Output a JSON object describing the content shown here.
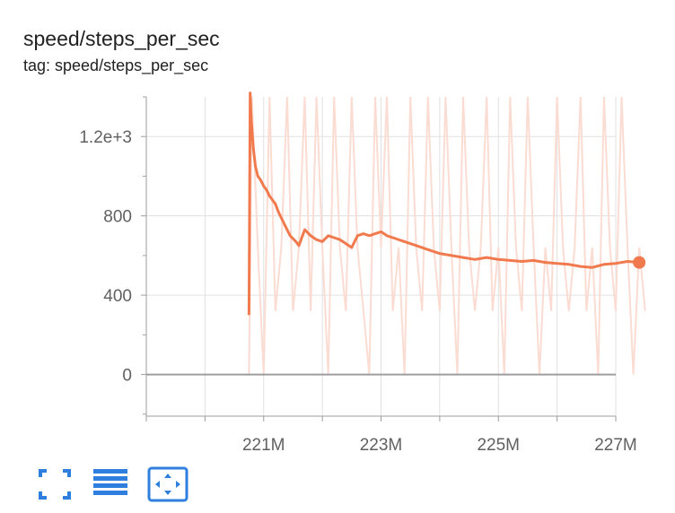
{
  "card": {
    "title": "speed/steps_per_sec",
    "tag": "tag: speed/steps_per_sec"
  },
  "colors": {
    "smoothed": "#f07a4d",
    "raw": "#fbdcd2",
    "grid": "#e0e0e0",
    "axis": "#9e9e9e",
    "zero_line": "#9e9e9e",
    "toolbar_icon": "#2f7fde"
  },
  "toolbar": {
    "icons": [
      "fullscreen-icon",
      "toggle-log-scale-icon",
      "fit-domain-icon"
    ]
  },
  "chart_data": {
    "type": "line",
    "title": "",
    "xlabel": "",
    "ylabel": "",
    "xlim": [
      219.0,
      227.0
    ],
    "ylim": [
      -210,
      1400
    ],
    "x_ticks": [
      221,
      223,
      225,
      227
    ],
    "x_tick_labels": [
      "221M",
      "223M",
      "225M",
      "227M"
    ],
    "y_ticks": [
      0,
      400,
      800,
      1200
    ],
    "y_tick_labels": [
      "0",
      "400",
      "800",
      "1.2e+3"
    ],
    "grid": true,
    "legend": "none",
    "series": [
      {
        "role": "smoothed",
        "x": [
          220.75,
          220.77,
          220.79,
          220.82,
          220.86,
          220.9,
          220.95,
          221.0,
          221.05,
          221.1,
          221.15,
          221.2,
          221.25,
          221.3,
          221.35,
          221.45,
          221.55,
          221.6,
          221.7,
          221.8,
          221.9,
          222.0,
          222.1,
          222.2,
          222.3,
          222.4,
          222.5,
          222.6,
          222.7,
          222.8,
          222.9,
          223.0,
          223.1,
          223.2,
          223.4,
          223.6,
          223.8,
          224.0,
          224.2,
          224.4,
          224.6,
          224.8,
          225.0,
          225.2,
          225.4,
          225.6,
          225.8,
          226.0,
          226.2,
          226.4,
          226.6,
          226.8,
          227.0,
          227.2,
          227.4
        ],
        "y": [
          300,
          1420,
          1280,
          1150,
          1050,
          1000,
          980,
          950,
          930,
          900,
          880,
          860,
          820,
          790,
          760,
          700,
          670,
          650,
          730,
          700,
          680,
          670,
          700,
          690,
          680,
          660,
          640,
          700,
          710,
          700,
          710,
          720,
          700,
          690,
          670,
          650,
          630,
          610,
          600,
          590,
          580,
          590,
          580,
          575,
          570,
          575,
          565,
          560,
          555,
          545,
          540,
          555,
          560,
          570,
          565
        ]
      },
      {
        "role": "raw",
        "x": [
          220.75,
          220.8,
          220.9,
          221.0,
          221.1,
          221.2,
          221.3,
          221.4,
          221.5,
          221.6,
          221.7,
          221.8,
          221.9,
          222.0,
          222.1,
          222.2,
          222.3,
          222.4,
          222.5,
          222.6,
          222.7,
          222.8,
          222.9,
          223.0,
          223.1,
          223.2,
          223.3,
          223.4,
          223.5,
          223.6,
          223.7,
          223.8,
          223.9,
          224.0,
          224.1,
          224.2,
          224.3,
          224.4,
          224.5,
          224.6,
          224.7,
          224.8,
          224.9,
          225.0,
          225.1,
          225.2,
          225.3,
          225.4,
          225.5,
          225.6,
          225.7,
          225.8,
          225.9,
          226.0,
          226.1,
          226.2,
          226.3,
          226.4,
          226.5,
          226.6,
          226.7,
          226.8,
          226.9,
          227.0,
          227.1,
          227.2,
          227.3,
          227.4,
          227.5
        ],
        "y": [
          0,
          1400,
          640,
          0,
          1400,
          320,
          640,
          1400,
          320,
          640,
          1400,
          320,
          1400,
          640,
          0,
          1400,
          640,
          320,
          1400,
          640,
          320,
          0,
          1400,
          640,
          1400,
          320,
          640,
          0,
          1400,
          640,
          320,
          1400,
          640,
          320,
          1400,
          640,
          0,
          1400,
          640,
          320,
          640,
          1400,
          320,
          640,
          0,
          1400,
          640,
          320,
          1400,
          640,
          0,
          640,
          320,
          1400,
          640,
          320,
          640,
          1400,
          320,
          640,
          0,
          1400,
          640,
          320,
          1400,
          640,
          0,
          640,
          320
        ]
      }
    ]
  }
}
